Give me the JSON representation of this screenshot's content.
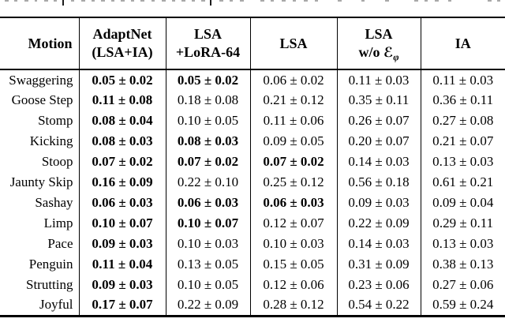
{
  "page": {
    "background": "#ffffff",
    "text_color": "#000000"
  },
  "clipped_caption": {
    "fragments": [
      [
        6,
        5,
        2,
        0
      ],
      [
        18,
        4,
        2,
        0
      ],
      [
        31,
        5,
        2,
        0
      ],
      [
        44,
        3,
        2,
        0
      ],
      [
        56,
        5,
        2,
        0
      ],
      [
        68,
        4,
        2,
        0
      ],
      [
        79,
        2,
        7,
        1
      ],
      [
        90,
        4,
        2,
        0
      ],
      [
        103,
        5,
        2,
        0
      ],
      [
        116,
        4,
        2,
        0
      ],
      [
        128,
        5,
        2,
        0
      ],
      [
        141,
        4,
        2,
        0
      ],
      [
        153,
        5,
        2,
        0
      ],
      [
        166,
        4,
        2,
        0
      ],
      [
        178,
        5,
        2,
        0
      ],
      [
        192,
        4,
        2,
        0
      ],
      [
        205,
        5,
        2,
        0
      ],
      [
        218,
        4,
        2,
        0
      ],
      [
        230,
        5,
        2,
        0
      ],
      [
        243,
        4,
        2,
        0
      ],
      [
        255,
        5,
        2,
        0
      ],
      [
        266,
        2,
        7,
        1
      ],
      [
        278,
        5,
        2,
        0
      ],
      [
        291,
        4,
        2,
        0
      ],
      [
        304,
        5,
        2,
        0
      ],
      [
        330,
        5,
        2,
        0
      ],
      [
        343,
        4,
        2,
        0
      ],
      [
        357,
        5,
        2,
        0
      ],
      [
        371,
        4,
        2,
        0
      ],
      [
        385,
        5,
        2,
        0
      ],
      [
        399,
        4,
        2,
        0
      ],
      [
        428,
        5,
        2,
        0
      ],
      [
        458,
        4,
        2,
        0
      ],
      [
        488,
        5,
        2,
        0
      ],
      [
        525,
        5,
        2,
        0
      ],
      [
        538,
        4,
        2,
        0
      ],
      [
        551,
        5,
        2,
        0
      ],
      [
        568,
        4,
        2,
        0
      ],
      [
        618,
        5,
        2,
        0
      ],
      [
        630,
        4,
        2,
        0
      ]
    ]
  },
  "table": {
    "columns": [
      {
        "id": "motion",
        "lines": [
          "Motion"
        ]
      },
      {
        "id": "adaptnet",
        "lines": [
          "AdaptNet",
          "(LSA+IA)"
        ]
      },
      {
        "id": "lsa-lora",
        "lines": [
          "LSA",
          "+LoRA-64"
        ]
      },
      {
        "id": "lsa",
        "lines": [
          "LSA"
        ]
      },
      {
        "id": "lsa-wo-ephi",
        "lines": [
          "LSA",
          "w/o ℰφ"
        ],
        "line2_prefix": "w/o ",
        "symbol": "ℰ",
        "symbol_sub": "φ"
      },
      {
        "id": "ia",
        "lines": [
          "IA"
        ]
      }
    ],
    "rows": [
      {
        "motion": "Swaggering",
        "cells": [
          {
            "v": "0.05 ± 0.02",
            "b": true
          },
          {
            "v": "0.05 ± 0.02",
            "b": true
          },
          {
            "v": "0.06 ± 0.02",
            "b": false
          },
          {
            "v": "0.11 ± 0.03",
            "b": false
          },
          {
            "v": "0.11 ± 0.03",
            "b": false
          }
        ]
      },
      {
        "motion": "Goose Step",
        "cells": [
          {
            "v": "0.11 ± 0.08",
            "b": true
          },
          {
            "v": "0.18 ± 0.08",
            "b": false
          },
          {
            "v": "0.21 ± 0.12",
            "b": false
          },
          {
            "v": "0.35 ± 0.11",
            "b": false
          },
          {
            "v": "0.36 ± 0.11",
            "b": false
          }
        ]
      },
      {
        "motion": "Stomp",
        "cells": [
          {
            "v": "0.08 ± 0.04",
            "b": true
          },
          {
            "v": "0.10 ± 0.05",
            "b": false
          },
          {
            "v": "0.11 ± 0.06",
            "b": false
          },
          {
            "v": "0.26 ± 0.07",
            "b": false
          },
          {
            "v": "0.27 ± 0.08",
            "b": false
          }
        ]
      },
      {
        "motion": "Kicking",
        "cells": [
          {
            "v": "0.08 ± 0.03",
            "b": true
          },
          {
            "v": "0.08 ± 0.03",
            "b": true
          },
          {
            "v": "0.09 ± 0.05",
            "b": false
          },
          {
            "v": "0.20 ± 0.07",
            "b": false
          },
          {
            "v": "0.21 ± 0.07",
            "b": false
          }
        ]
      },
      {
        "motion": "Stoop",
        "cells": [
          {
            "v": "0.07 ± 0.02",
            "b": true
          },
          {
            "v": "0.07 ± 0.02",
            "b": true
          },
          {
            "v": "0.07 ± 0.02",
            "b": true
          },
          {
            "v": "0.14 ± 0.03",
            "b": false
          },
          {
            "v": "0.13 ± 0.03",
            "b": false
          }
        ]
      },
      {
        "motion": "Jaunty Skip",
        "cells": [
          {
            "v": "0.16 ± 0.09",
            "b": true
          },
          {
            "v": "0.22 ± 0.10",
            "b": false
          },
          {
            "v": "0.25 ± 0.12",
            "b": false
          },
          {
            "v": "0.56 ± 0.18",
            "b": false
          },
          {
            "v": "0.61 ± 0.21",
            "b": false
          }
        ]
      },
      {
        "motion": "Sashay",
        "cells": [
          {
            "v": "0.06 ± 0.03",
            "b": true
          },
          {
            "v": "0.06 ± 0.03",
            "b": true
          },
          {
            "v": "0.06 ± 0.03",
            "b": true
          },
          {
            "v": "0.09 ± 0.03",
            "b": false
          },
          {
            "v": "0.09 ± 0.04",
            "b": false
          }
        ]
      },
      {
        "motion": "Limp",
        "cells": [
          {
            "v": "0.10 ± 0.07",
            "b": true
          },
          {
            "v": "0.10 ± 0.07",
            "b": true
          },
          {
            "v": "0.12 ± 0.07",
            "b": false
          },
          {
            "v": "0.22 ± 0.09",
            "b": false
          },
          {
            "v": "0.29 ± 0.11",
            "b": false
          }
        ]
      },
      {
        "motion": "Pace",
        "cells": [
          {
            "v": "0.09 ± 0.03",
            "b": true
          },
          {
            "v": "0.10 ± 0.03",
            "b": false
          },
          {
            "v": "0.10 ± 0.03",
            "b": false
          },
          {
            "v": "0.14 ± 0.03",
            "b": false
          },
          {
            "v": "0.13 ± 0.03",
            "b": false
          }
        ]
      },
      {
        "motion": "Penguin",
        "cells": [
          {
            "v": "0.11 ± 0.04",
            "b": true
          },
          {
            "v": "0.13 ± 0.05",
            "b": false
          },
          {
            "v": "0.15 ± 0.05",
            "b": false
          },
          {
            "v": "0.31 ± 0.09",
            "b": false
          },
          {
            "v": "0.38 ± 0.13",
            "b": false
          }
        ]
      },
      {
        "motion": "Strutting",
        "cells": [
          {
            "v": "0.09 ± 0.03",
            "b": true
          },
          {
            "v": "0.10 ± 0.05",
            "b": false
          },
          {
            "v": "0.12 ± 0.06",
            "b": false
          },
          {
            "v": "0.23 ± 0.06",
            "b": false
          },
          {
            "v": "0.27 ± 0.06",
            "b": false
          }
        ]
      },
      {
        "motion": "Joyful",
        "cells": [
          {
            "v": "0.17 ± 0.07",
            "b": true
          },
          {
            "v": "0.22 ± 0.09",
            "b": false
          },
          {
            "v": "0.28 ± 0.12",
            "b": false
          },
          {
            "v": "0.54 ± 0.22",
            "b": false
          },
          {
            "v": "0.59 ± 0.24",
            "b": false
          }
        ]
      }
    ]
  }
}
